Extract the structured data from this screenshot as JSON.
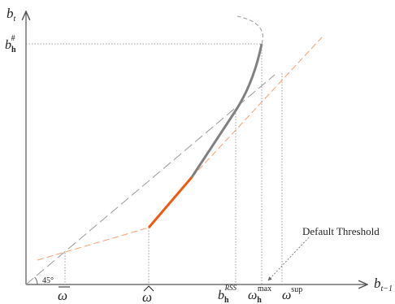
{
  "axes": {
    "y_label": "b",
    "y_sub": "t",
    "x_label": "b",
    "x_sub": "t−1"
  },
  "labels": {
    "b_hash_base": "b",
    "b_hash_sub": "h",
    "b_hash_sup": "#",
    "angle": "45°",
    "omega_bar": "ω",
    "omega_hat": "ω",
    "b_rss_base": "b",
    "b_rss_sub": "h",
    "b_rss_sup": "RSS",
    "omega_max_base": "ω",
    "omega_max_sub": "h",
    "omega_max_sup": "max",
    "omega_sup_base": "ω",
    "omega_sup_sup": "sup",
    "default_threshold": "Default Threshold"
  },
  "colors": {
    "axis": "#555555",
    "orange": "#f05a0f",
    "orange_dash": "#f5a06e",
    "gray_curve": "#808080",
    "dash_gray": "#9a9a9a",
    "dotted": "#888888"
  }
}
